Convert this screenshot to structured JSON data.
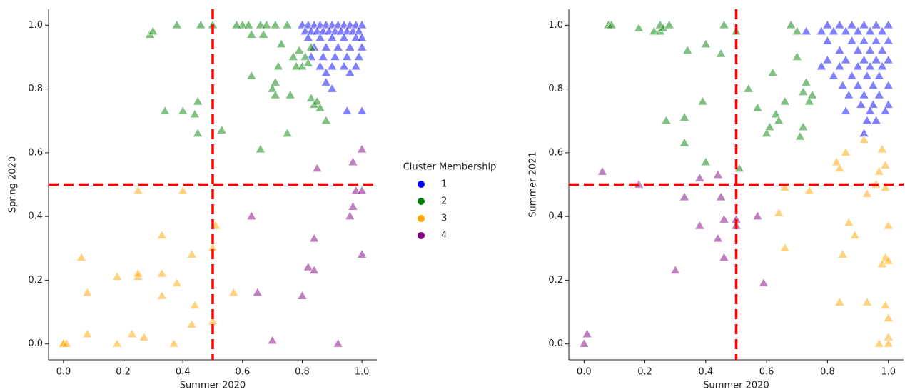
{
  "chart_data": [
    {
      "type": "scatter",
      "xlabel": "Summer 2020",
      "ylabel": "Spring 2020",
      "legend_title": "Cluster Membership",
      "xlim": [
        -0.05,
        1.05
      ],
      "ylim": [
        -0.05,
        1.05
      ],
      "xticks": [
        {
          "value": 0,
          "label": "0.0"
        },
        {
          "value": 0.2,
          "label": "0.2"
        },
        {
          "value": 0.4,
          "label": "0.4"
        },
        {
          "value": 0.6,
          "label": "0.6"
        },
        {
          "value": 0.8,
          "label": "0.8"
        },
        {
          "value": 1,
          "label": "1.0"
        }
      ],
      "yticks": [
        {
          "value": 0,
          "label": "0.0"
        },
        {
          "value": 0.2,
          "label": "0.2"
        },
        {
          "value": 0.4,
          "label": "0.4"
        },
        {
          "value": 0.6,
          "label": "0.6"
        },
        {
          "value": 0.8,
          "label": "0.8"
        },
        {
          "value": 1,
          "label": "1.0"
        }
      ],
      "hlines": [
        0.5
      ],
      "vlines": [
        0.5
      ],
      "line_color": "red",
      "marker": "triangle",
      "alpha": 0.5,
      "series": [
        {
          "name": "1",
          "color": "blue",
          "x": [
            0.8,
            0.82,
            0.84,
            0.86,
            0.88,
            0.9,
            0.92,
            0.94,
            0.96,
            0.98,
            1.0,
            0.81,
            0.83,
            0.85,
            0.87,
            0.89,
            0.91,
            0.93,
            0.95,
            0.97,
            0.99,
            0.82,
            0.86,
            0.9,
            0.94,
            0.98,
            1.0,
            0.84,
            0.88,
            0.92,
            0.96,
            1.0,
            0.83,
            0.87,
            0.91,
            0.95,
            0.99,
            0.86,
            0.9,
            0.94,
            0.98,
            0.88,
            0.96,
            0.95,
            1.0,
            0.88,
            0.9
          ],
          "values": [
            1.0,
            1.0,
            1.0,
            1.0,
            1.0,
            1.0,
            1.0,
            1.0,
            1.0,
            1.0,
            1.0,
            0.98,
            0.98,
            0.98,
            0.98,
            0.98,
            0.98,
            0.98,
            0.98,
            0.98,
            0.98,
            0.96,
            0.96,
            0.96,
            0.96,
            0.96,
            0.96,
            0.93,
            0.93,
            0.93,
            0.93,
            0.93,
            0.9,
            0.9,
            0.9,
            0.9,
            0.9,
            0.87,
            0.87,
            0.87,
            0.87,
            0.85,
            0.85,
            0.73,
            0.73,
            0.82,
            0.8
          ]
        },
        {
          "name": "2",
          "color": "green",
          "x": [
            0.29,
            0.3,
            0.38,
            0.46,
            0.5,
            0.6,
            0.58,
            0.62,
            0.66,
            0.68,
            0.71,
            0.75,
            0.63,
            0.67,
            0.73,
            0.79,
            0.77,
            0.81,
            0.83,
            0.72,
            0.78,
            0.8,
            0.82,
            0.63,
            0.7,
            0.71,
            0.71,
            0.76,
            0.83,
            0.84,
            0.85,
            0.86,
            0.34,
            0.4,
            0.44,
            0.45,
            0.45,
            0.53,
            0.75,
            0.66,
            0.88
          ],
          "values": [
            0.97,
            0.98,
            1.0,
            1.0,
            1.0,
            1.0,
            1.0,
            1.0,
            1.0,
            1.0,
            1.0,
            1.0,
            0.97,
            0.97,
            0.94,
            0.92,
            0.9,
            0.9,
            0.93,
            0.87,
            0.87,
            0.87,
            0.88,
            0.84,
            0.8,
            0.78,
            0.82,
            0.78,
            0.77,
            0.75,
            0.76,
            0.74,
            0.73,
            0.73,
            0.72,
            0.76,
            0.66,
            0.67,
            0.66,
            0.61,
            0.7
          ]
        },
        {
          "name": "3",
          "color": "orange",
          "x": [
            0.0,
            0.0,
            0.01,
            0.06,
            0.08,
            0.08,
            0.18,
            0.18,
            0.23,
            0.25,
            0.25,
            0.27,
            0.25,
            0.33,
            0.33,
            0.33,
            0.37,
            0.38,
            0.4,
            0.43,
            0.44,
            0.43,
            0.5,
            0.51,
            0.5,
            0.57
          ],
          "values": [
            0.0,
            0.0,
            0.0,
            0.27,
            0.16,
            0.03,
            0.21,
            0.0,
            0.03,
            0.21,
            0.22,
            0.02,
            0.48,
            0.34,
            0.22,
            0.15,
            0.0,
            0.19,
            0.48,
            0.28,
            0.12,
            0.06,
            0.3,
            0.37,
            0.07,
            0.16
          ]
        },
        {
          "name": "4",
          "color": "purple",
          "x": [
            0.63,
            0.65,
            0.7,
            0.8,
            0.82,
            0.84,
            0.84,
            0.85,
            0.92,
            0.96,
            0.97,
            0.97,
            0.98,
            1.0,
            1.0,
            1.0
          ],
          "values": [
            0.4,
            0.16,
            0.01,
            0.15,
            0.24,
            0.23,
            0.33,
            0.55,
            0.0,
            0.4,
            0.43,
            0.57,
            0.48,
            0.48,
            0.61,
            0.28
          ]
        }
      ]
    },
    {
      "type": "scatter",
      "xlabel": "Summer 2020",
      "ylabel": "Summer 2021",
      "xlim": [
        -0.05,
        1.05
      ],
      "ylim": [
        -0.05,
        1.05
      ],
      "xticks": [
        {
          "value": 0,
          "label": "0.0"
        },
        {
          "value": 0.2,
          "label": "0.2"
        },
        {
          "value": 0.4,
          "label": "0.4"
        },
        {
          "value": 0.6,
          "label": "0.6"
        },
        {
          "value": 0.8,
          "label": "0.8"
        },
        {
          "value": 1,
          "label": "1.0"
        }
      ],
      "yticks": [
        {
          "value": 0,
          "label": "0.0"
        },
        {
          "value": 0.2,
          "label": "0.2"
        },
        {
          "value": 0.4,
          "label": "0.4"
        },
        {
          "value": 0.6,
          "label": "0.6"
        },
        {
          "value": 0.8,
          "label": "0.8"
        },
        {
          "value": 1,
          "label": "1.0"
        }
      ],
      "hlines": [
        0.5
      ],
      "vlines": [
        0.5
      ],
      "line_color": "red",
      "marker": "triangle",
      "alpha": 0.5,
      "series": [
        {
          "color": "blue",
          "x": [
            0.8,
            0.84,
            0.88,
            0.92,
            0.96,
            1.0,
            0.73,
            0.78,
            0.82,
            0.86,
            0.9,
            0.94,
            0.98,
            0.8,
            0.88,
            0.92,
            0.96,
            1.0,
            0.84,
            0.9,
            0.94,
            0.98,
            0.8,
            0.86,
            0.92,
            0.96,
            1.0,
            0.78,
            0.84,
            0.9,
            0.94,
            0.98,
            0.82,
            0.88,
            0.93,
            0.97,
            0.85,
            0.9,
            0.95,
            1.0,
            0.87,
            0.92,
            0.97,
            0.91,
            0.95,
            1.0,
            0.86,
            0.94,
            0.99,
            0.93,
            0.96,
            0.92
          ],
          "values": [
            1.0,
            1.0,
            1.0,
            1.0,
            1.0,
            1.0,
            0.98,
            0.98,
            0.98,
            0.98,
            0.98,
            0.98,
            0.98,
            0.95,
            0.95,
            0.95,
            0.95,
            0.95,
            0.92,
            0.92,
            0.92,
            0.92,
            0.89,
            0.89,
            0.89,
            0.89,
            0.89,
            0.87,
            0.87,
            0.87,
            0.87,
            0.87,
            0.84,
            0.84,
            0.84,
            0.84,
            0.81,
            0.81,
            0.81,
            0.81,
            0.78,
            0.78,
            0.78,
            0.75,
            0.75,
            0.75,
            0.73,
            0.73,
            0.73,
            0.7,
            0.7,
            0.66
          ]
        },
        {
          "color": "green",
          "x": [
            0.08,
            0.09,
            0.18,
            0.23,
            0.25,
            0.25,
            0.26,
            0.28,
            0.34,
            0.39,
            0.4,
            0.45,
            0.46,
            0.5,
            0.27,
            0.33,
            0.33,
            0.4,
            0.51,
            0.54,
            0.57,
            0.6,
            0.61,
            0.62,
            0.63,
            0.64,
            0.66,
            0.68,
            0.7,
            0.7,
            0.71,
            0.72,
            0.72,
            0.73,
            0.74,
            0.75
          ],
          "values": [
            1.0,
            1.0,
            0.99,
            0.98,
            0.98,
            1.0,
            0.99,
            1.0,
            0.92,
            0.76,
            0.94,
            0.91,
            1.0,
            0.98,
            0.7,
            0.71,
            0.63,
            0.57,
            0.55,
            0.8,
            0.74,
            0.66,
            0.68,
            0.85,
            0.72,
            0.7,
            0.76,
            1.0,
            0.98,
            0.9,
            0.65,
            0.68,
            0.79,
            0.82,
            0.76,
            0.78
          ]
        },
        {
          "color": "orange",
          "x": [
            0.66,
            0.64,
            0.66,
            0.74,
            0.83,
            0.84,
            0.86,
            0.84,
            0.85,
            0.87,
            0.89,
            0.92,
            0.93,
            0.93,
            0.96,
            0.97,
            0.98,
            0.99,
            0.99,
            1.0,
            0.99,
            0.98,
            1.0,
            0.99,
            1.0,
            1.0,
            0.97,
            1.0
          ],
          "values": [
            0.49,
            0.41,
            0.3,
            0.48,
            0.57,
            0.55,
            0.6,
            0.13,
            0.28,
            0.38,
            0.34,
            0.64,
            0.47,
            0.13,
            0.5,
            0.54,
            0.61,
            0.56,
            0.49,
            0.37,
            0.27,
            0.25,
            0.26,
            0.12,
            0.08,
            0.02,
            0.0,
            0.0
          ]
        },
        {
          "color": "purple",
          "x": [
            0.0,
            0.01,
            0.06,
            0.18,
            0.3,
            0.33,
            0.38,
            0.38,
            0.44,
            0.44,
            0.45,
            0.46,
            0.46,
            0.5,
            0.5,
            0.57,
            0.59
          ],
          "values": [
            0.0,
            0.03,
            0.54,
            0.5,
            0.23,
            0.46,
            0.37,
            0.52,
            0.53,
            0.33,
            0.46,
            0.27,
            0.39,
            0.39,
            0.37,
            0.4,
            0.19
          ]
        }
      ]
    }
  ]
}
